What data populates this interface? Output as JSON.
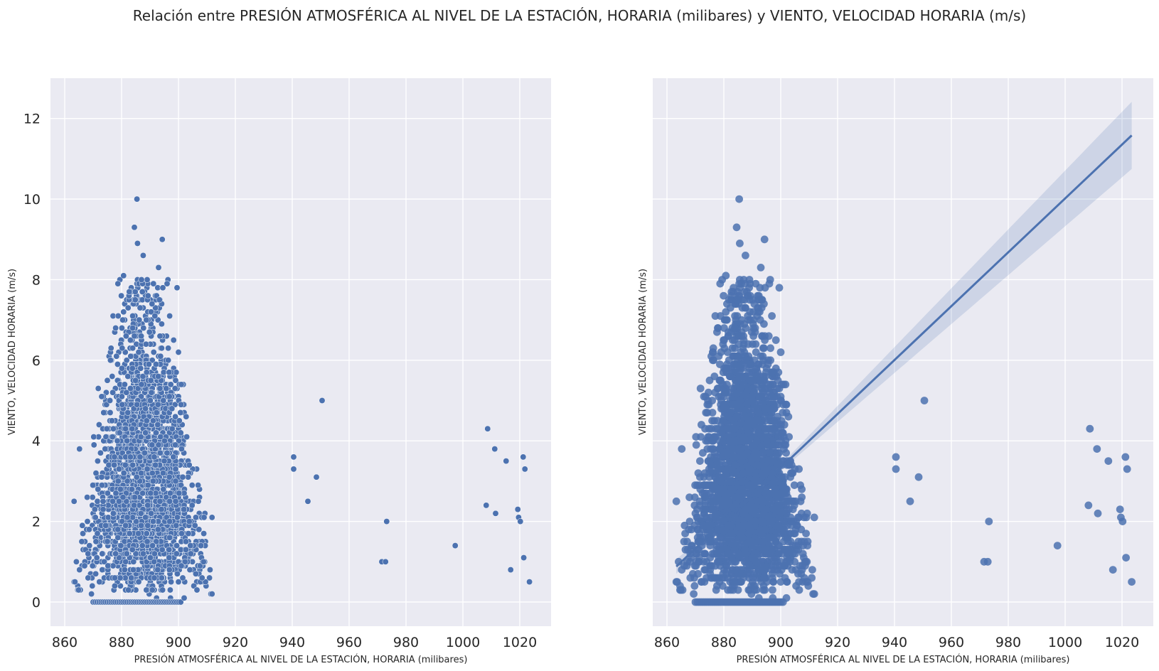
{
  "figure": {
    "suptitle": "Relación entre PRESIÓN ATMOSFÉRICA AL NIVEL DE LA ESTACIÓN, HORARIA (milibares) y VIENTO, VELOCIDAD HORARIA (m/s)",
    "background_color": "#EAEAF2",
    "grid_color": "#FFFFFF",
    "point_color": "#4C72B0",
    "band_color": "#4C72B0"
  },
  "chart_data": [
    {
      "type": "scatter",
      "title": "",
      "xlabel": "PRESIÓN ATMOSFÉRICA AL NIVEL DE LA ESTACIÓN, HORARIA (milibares)",
      "ylabel": "VIENTO, VELOCIDAD HORARIA (m/s)",
      "xlim": [
        855,
        1031
      ],
      "ylim": [
        -0.6,
        13
      ],
      "xticks": [
        860,
        880,
        900,
        920,
        940,
        960,
        980,
        1000,
        1020
      ],
      "yticks": [
        0,
        2,
        4,
        6,
        8,
        10,
        12
      ],
      "grid": true,
      "dense_cloud": {
        "x_range": [
          863,
          912
        ],
        "y_range": [
          0,
          10
        ],
        "note_center_x": 888
      },
      "outliers": [
        {
          "x": 940.5,
          "y": 3.6
        },
        {
          "x": 940.5,
          "y": 3.3
        },
        {
          "x": 945.5,
          "y": 2.5
        },
        {
          "x": 948.5,
          "y": 3.1
        },
        {
          "x": 950.5,
          "y": 5.0
        },
        {
          "x": 971.5,
          "y": 1.0
        },
        {
          "x": 972.8,
          "y": 1.0
        },
        {
          "x": 973.2,
          "y": 2.0
        },
        {
          "x": 997.3,
          "y": 1.4
        },
        {
          "x": 1008.2,
          "y": 2.4
        },
        {
          "x": 1008.7,
          "y": 4.3
        },
        {
          "x": 1011.2,
          "y": 3.8
        },
        {
          "x": 1011.5,
          "y": 2.2
        },
        {
          "x": 1015.2,
          "y": 3.5
        },
        {
          "x": 1016.8,
          "y": 0.8
        },
        {
          "x": 1019.3,
          "y": 2.3
        },
        {
          "x": 1019.6,
          "y": 2.1
        },
        {
          "x": 1020.2,
          "y": 2.0
        },
        {
          "x": 1021.2,
          "y": 3.6
        },
        {
          "x": 1021.4,
          "y": 1.1
        },
        {
          "x": 1021.8,
          "y": 3.3
        },
        {
          "x": 1023.4,
          "y": 0.5
        },
        {
          "x": 863.3,
          "y": 2.5
        },
        {
          "x": 865.2,
          "y": 3.8
        },
        {
          "x": 885.4,
          "y": 10.0
        },
        {
          "x": 884.5,
          "y": 9.3
        },
        {
          "x": 885.6,
          "y": 8.9
        },
        {
          "x": 894.3,
          "y": 9.0
        },
        {
          "x": 887.6,
          "y": 8.6
        },
        {
          "x": 893.0,
          "y": 8.3
        },
        {
          "x": 911.8,
          "y": 2.1
        },
        {
          "x": 902.0,
          "y": 0.1
        }
      ]
    },
    {
      "type": "scatter",
      "title": "",
      "xlabel": "PRESIÓN ATMOSFÉRICA AL NIVEL DE LA ESTACIÓN, HORARIA (milibares)",
      "ylabel": "VIENTO, VELOCIDAD HORARIA (m/s)",
      "xlim": [
        855,
        1031
      ],
      "ylim": [
        -0.6,
        13
      ],
      "xticks": [
        860,
        880,
        900,
        920,
        940,
        960,
        980,
        1000,
        1020
      ],
      "yticks": [],
      "grid": true,
      "regression": {
        "x": [
          863.3,
          1023.4
        ],
        "y": [
          0.88,
          11.58
        ],
        "ci_low": [
          0.7,
          10.75
        ],
        "ci_high": [
          1.06,
          12.42
        ],
        "ci_pivot_x": 888
      }
    }
  ]
}
